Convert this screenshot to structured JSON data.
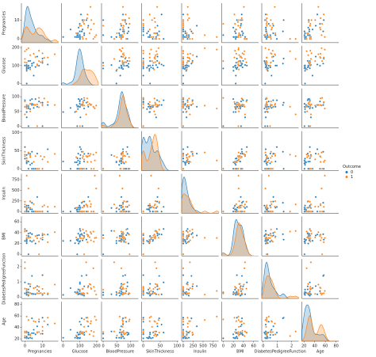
{
  "chart_data": {
    "type": "pairplot",
    "variables": [
      {
        "name": "Pregnancies",
        "lim": [
          -2,
          19
        ],
        "ticks": [
          0,
          10
        ]
      },
      {
        "name": "Glucose",
        "lim": [
          -10,
          210
        ],
        "ticks": [
          0,
          100,
          200
        ]
      },
      {
        "name": "BloodPressure",
        "lim": [
          -6,
          128
        ],
        "ticks": [
          0,
          50,
          100
        ]
      },
      {
        "name": "SkinThickness",
        "lim": [
          -5,
          104
        ],
        "ticks": [
          0,
          50,
          100
        ]
      },
      {
        "name": "Insulin",
        "lim": [
          -40,
          890
        ],
        "ticks": [
          0,
          250,
          500,
          750
        ]
      },
      {
        "name": "BMI",
        "lim": [
          -3,
          70
        ],
        "ticks": [
          0,
          20,
          40,
          60
        ]
      },
      {
        "name": "DiabetesPedigreeFunction",
        "lim": [
          -0.1,
          2.5
        ],
        "ticks": [
          0,
          1,
          2
        ]
      },
      {
        "name": "Age",
        "lim": [
          16,
          85
        ],
        "ticks": [
          20,
          40,
          60,
          80
        ]
      }
    ],
    "legend_title": "Outcome",
    "legend_position": "right",
    "series": [
      {
        "name": "0",
        "color": "#1f77b4",
        "rows": [
          [
            1,
            85,
            66,
            29,
            0,
            26.6,
            0.351,
            31
          ],
          [
            1,
            89,
            66,
            23,
            94,
            28.1,
            0.167,
            21
          ],
          [
            5,
            116,
            74,
            0,
            0,
            25.6,
            0.201,
            30
          ],
          [
            10,
            115,
            0,
            0,
            0,
            35.3,
            0.134,
            29
          ],
          [
            4,
            110,
            92,
            0,
            0,
            37.6,
            0.191,
            30
          ],
          [
            10,
            139,
            80,
            0,
            0,
            27.1,
            1.441,
            57
          ],
          [
            1,
            103,
            30,
            38,
            83,
            43.3,
            0.183,
            33
          ],
          [
            3,
            126,
            88,
            41,
            235,
            39.3,
            0.704,
            27
          ],
          [
            8,
            99,
            84,
            0,
            0,
            35.4,
            0.388,
            50
          ],
          [
            1,
            97,
            66,
            15,
            140,
            23.2,
            0.487,
            22
          ],
          [
            13,
            106,
            72,
            54,
            0,
            36.6,
            0.178,
            45
          ],
          [
            2,
            90,
            68,
            42,
            0,
            38.2,
            0.503,
            27
          ],
          [
            1,
            0,
            48,
            20,
            0,
            24.7,
            0.14,
            22
          ],
          [
            4,
            111,
            72,
            47,
            207,
            37.1,
            1.39,
            56
          ],
          [
            2,
            84,
            0,
            0,
            0,
            0,
            0.304,
            21
          ],
          [
            1,
            71,
            48,
            18,
            76,
            20.4,
            0.323,
            22
          ],
          [
            0,
            101,
            65,
            28,
            0,
            24.6,
            0.237,
            22
          ],
          [
            3,
            88,
            58,
            11,
            54,
            24.8,
            0.267,
            22
          ],
          [
            7,
            150,
            66,
            42,
            342,
            34.7,
            0.718,
            42
          ],
          [
            5,
            44,
            62,
            0,
            0,
            25,
            0.587,
            36
          ],
          [
            0,
            100,
            88,
            60,
            110,
            46.8,
            0.962,
            31
          ],
          [
            2,
            100,
            66,
            20,
            90,
            32.9,
            0.867,
            28
          ],
          [
            6,
            92,
            92,
            0,
            0,
            19.9,
            0.188,
            28
          ],
          [
            1,
            81,
            72,
            18,
            40,
            26.6,
            0.283,
            24
          ],
          [
            2,
            125,
            60,
            20,
            140,
            33.8,
            0.088,
            31
          ],
          [
            4,
            99,
            76,
            15,
            51,
            23.2,
            0.223,
            21
          ]
        ]
      },
      {
        "name": "1",
        "color": "#ff7f0e",
        "rows": [
          [
            6,
            148,
            72,
            35,
            0,
            33.6,
            0.627,
            50
          ],
          [
            8,
            183,
            64,
            0,
            0,
            23.3,
            0.672,
            32
          ],
          [
            0,
            137,
            40,
            35,
            168,
            43.1,
            2.288,
            33
          ],
          [
            3,
            78,
            50,
            32,
            88,
            31,
            0.248,
            26
          ],
          [
            2,
            197,
            70,
            45,
            543,
            30.5,
            0.158,
            53
          ],
          [
            8,
            125,
            96,
            0,
            0,
            0,
            0.232,
            54
          ],
          [
            10,
            168,
            74,
            0,
            0,
            38,
            0.537,
            34
          ],
          [
            1,
            189,
            60,
            23,
            846,
            30.1,
            0.398,
            59
          ],
          [
            5,
            166,
            72,
            19,
            175,
            25.8,
            0.587,
            51
          ],
          [
            7,
            100,
            0,
            0,
            0,
            30,
            0.484,
            32
          ],
          [
            0,
            118,
            84,
            47,
            230,
            45.8,
            0.551,
            31
          ],
          [
            7,
            107,
            74,
            0,
            0,
            29.6,
            0.254,
            31
          ],
          [
            1,
            115,
            70,
            30,
            96,
            34.6,
            0.529,
            32
          ],
          [
            9,
            119,
            80,
            35,
            0,
            29,
            0.263,
            29
          ],
          [
            11,
            143,
            94,
            33,
            146,
            36.6,
            0.254,
            51
          ],
          [
            10,
            125,
            70,
            26,
            115,
            31.1,
            0.205,
            41
          ],
          [
            13,
            145,
            82,
            19,
            110,
            22.2,
            0.245,
            57
          ],
          [
            3,
            158,
            76,
            36,
            245,
            31.6,
            0.851,
            28
          ],
          [
            17,
            163,
            72,
            41,
            114,
            40.9,
            0.817,
            47
          ],
          [
            0,
            180,
            66,
            39,
            0,
            42,
            1.893,
            25
          ]
        ]
      }
    ]
  }
}
